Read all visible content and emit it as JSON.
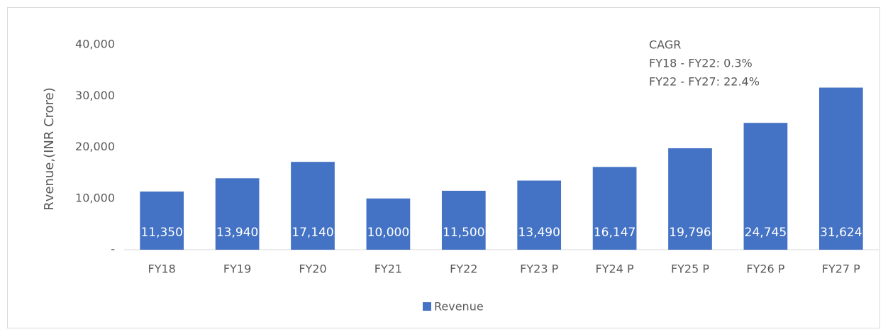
{
  "chart_data": {
    "type": "bar",
    "y_label": "Rvenue,(INR Crore)",
    "annotations": [
      "CAGR",
      "FY18 - FY22: 0.3%",
      "FY22 - FY27: 22.4%"
    ],
    "categories": [
      "FY18",
      "FY19",
      "FY20",
      "FY21",
      "FY22",
      "FY23 P",
      "FY24 P",
      "FY25 P",
      "FY26 P",
      "FY27 P"
    ],
    "series": [
      {
        "name": "Revenue",
        "color": "#4472c4",
        "values": [
          11350,
          13940,
          17140,
          10000,
          11500,
          13490,
          16147,
          19796,
          24745,
          31624
        ],
        "value_labels": [
          "11,350",
          "13,940",
          "17,140",
          "10,000",
          "11,500",
          "13,490",
          "16,147",
          "19,796",
          "24,745",
          "31,624"
        ]
      }
    ],
    "ylim": [
      0,
      40000
    ],
    "yticks": [
      {
        "value": 0,
        "label": "-"
      },
      {
        "value": 10000,
        "label": "10,000"
      },
      {
        "value": 20000,
        "label": "20,000"
      },
      {
        "value": 30000,
        "label": "30,000"
      },
      {
        "value": 40000,
        "label": "40,000"
      }
    ],
    "legend": "bottom"
  }
}
